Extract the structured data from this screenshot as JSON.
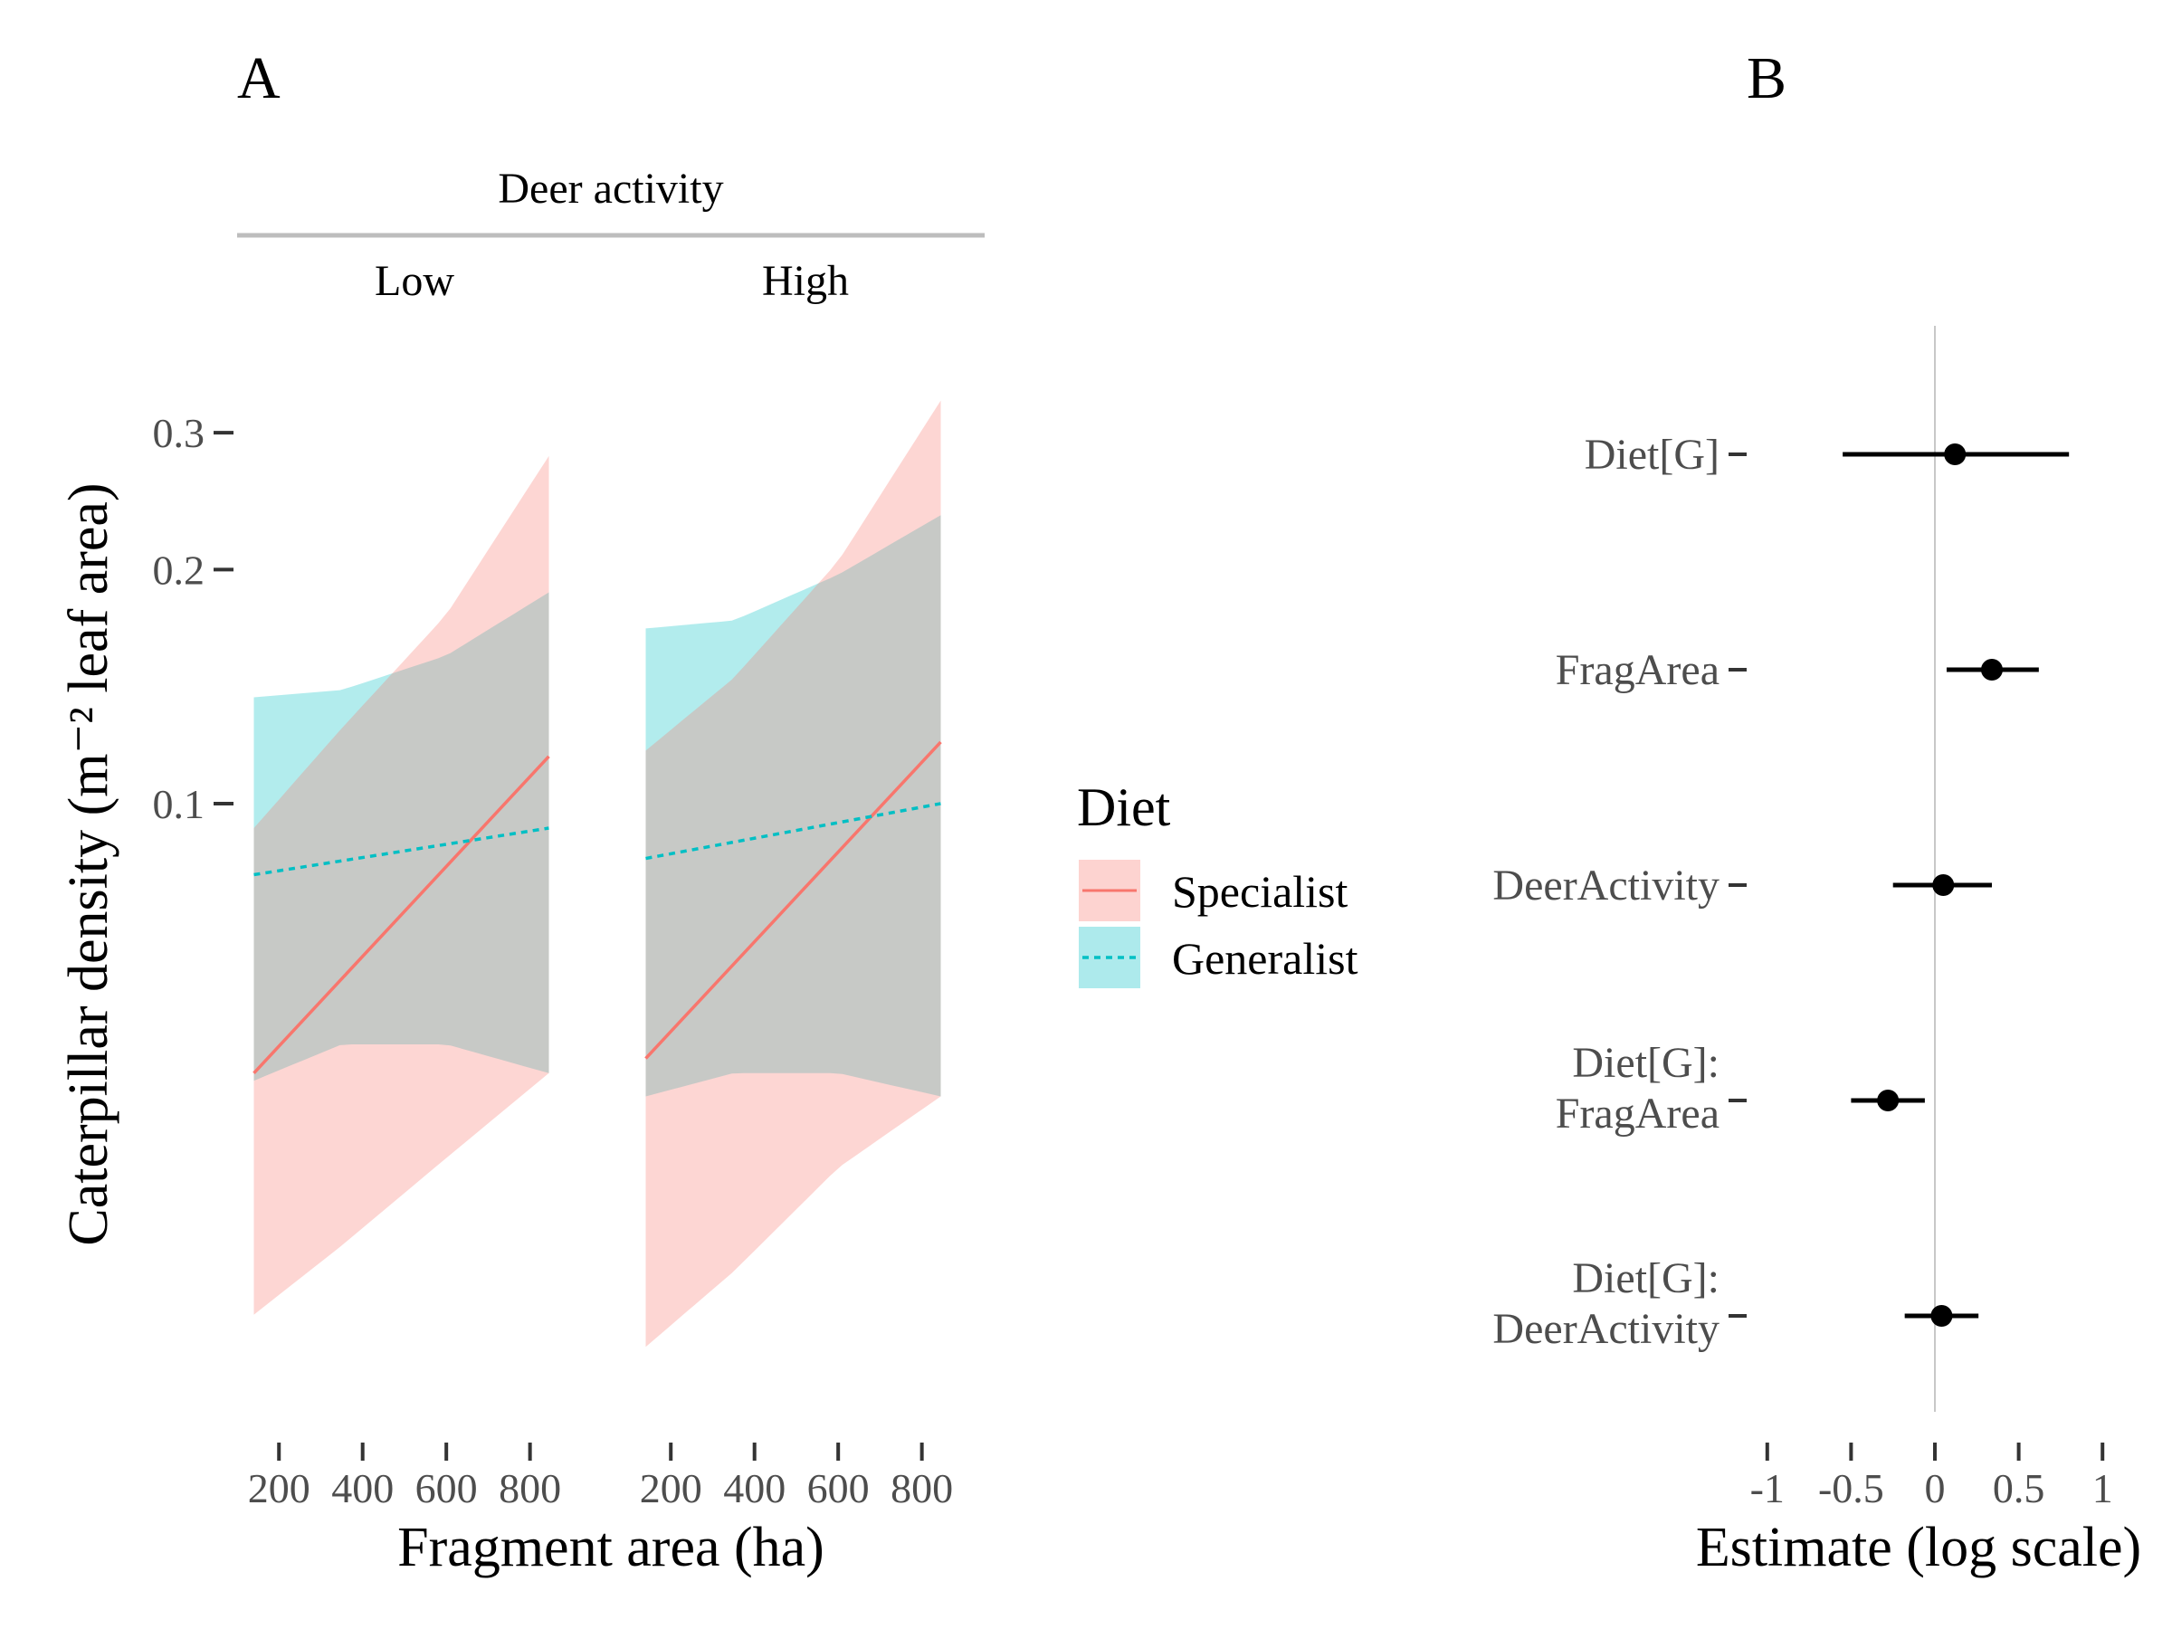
{
  "panel_labels": {
    "a": "A",
    "b": "B"
  },
  "chart_data": [
    {
      "type": "line",
      "panel": "A",
      "strip_title": "Deer activity",
      "facets": [
        "Low",
        "High"
      ],
      "xlabel": "Fragment area (ha)",
      "ylabel": "Caterpillar density (m⁻² leaf area)",
      "y_scale": "log",
      "x_ticks": [
        200,
        400,
        600,
        800
      ],
      "x_tick_labels": [
        "200",
        "400",
        "600",
        "800"
      ],
      "y_ticks": [
        0.1,
        0.2,
        0.3
      ],
      "y_tick_labels": [
        "0.1",
        "0.2",
        "0.3"
      ],
      "xlim": [
        100,
        950
      ],
      "ylim": [
        0.0165,
        0.38
      ],
      "legend": {
        "title": "Diet",
        "placement": "right",
        "entries": [
          "Specialist",
          "Generalist"
        ]
      },
      "colors": {
        "Specialist": "#F8766D",
        "Generalist": "#00BFC4"
      },
      "series": [
        {
          "facet": "Low",
          "name": "Specialist",
          "x": [
            140,
            845
          ],
          "y": [
            0.045,
            0.115
          ],
          "ci_x": [
            140,
            350,
            600,
            845
          ],
          "ci_lower": [
            0.022,
            0.027,
            0.035,
            0.045
          ],
          "ci_upper": [
            0.093,
            0.125,
            0.175,
            0.28
          ]
        },
        {
          "facet": "Low",
          "name": "Generalist",
          "x": [
            140,
            845
          ],
          "y": [
            0.081,
            0.093
          ],
          "ci_x": [
            140,
            350,
            600,
            845
          ],
          "ci_lower": [
            0.044,
            0.049,
            0.049,
            0.045
          ],
          "ci_upper": [
            0.137,
            0.14,
            0.155,
            0.187
          ]
        },
        {
          "facet": "High",
          "name": "Specialist",
          "x": [
            140,
            845
          ],
          "y": [
            0.047,
            0.12
          ],
          "ci_x": [
            140,
            350,
            600,
            845
          ],
          "ci_lower": [
            0.02,
            0.025,
            0.034,
            0.042
          ],
          "ci_upper": [
            0.117,
            0.145,
            0.205,
            0.33
          ]
        },
        {
          "facet": "High",
          "name": "Generalist",
          "x": [
            140,
            845
          ],
          "y": [
            0.085,
            0.1
          ],
          "ci_x": [
            140,
            350,
            600,
            845
          ],
          "ci_lower": [
            0.042,
            0.045,
            0.045,
            0.042
          ],
          "ci_upper": [
            0.168,
            0.172,
            0.197,
            0.235
          ]
        }
      ]
    },
    {
      "type": "scatter",
      "panel": "B",
      "xlabel": "Estimate (log scale)",
      "xlim": [
        -1.15,
        1.15
      ],
      "x_ticks": [
        -1,
        -0.5,
        0,
        0.5,
        1
      ],
      "x_tick_labels": [
        "-1",
        "-0.5",
        "0",
        "0.5",
        "1"
      ],
      "zero_line": true,
      "terms": [
        {
          "label": [
            "Diet[G]"
          ],
          "estimate": 0.12,
          "lower": -0.55,
          "upper": 0.8
        },
        {
          "label": [
            "FragArea"
          ],
          "estimate": 0.34,
          "lower": 0.07,
          "upper": 0.62
        },
        {
          "label": [
            "DeerActivity"
          ],
          "estimate": 0.05,
          "lower": -0.25,
          "upper": 0.34
        },
        {
          "label": [
            "Diet[G]:",
            "FragArea"
          ],
          "estimate": -0.28,
          "lower": -0.5,
          "upper": -0.06
        },
        {
          "label": [
            "Diet[G]:",
            "DeerActivity"
          ],
          "estimate": 0.04,
          "lower": -0.18,
          "upper": 0.26
        }
      ]
    }
  ]
}
